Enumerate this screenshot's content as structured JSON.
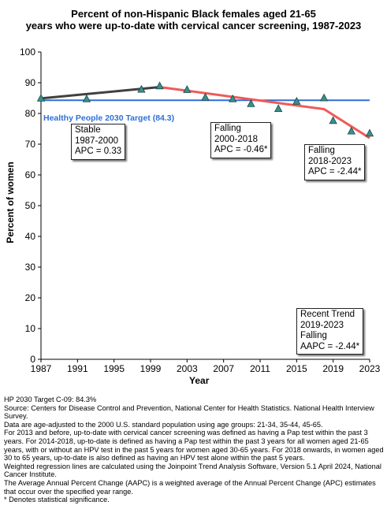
{
  "title_line1": "Percent of non-Hispanic Black females aged 21-65",
  "title_line2": "years who were up-to-date with cervical cancer screening, 1987-2023",
  "chart_data": {
    "type": "line",
    "xlabel": "Year",
    "ylabel": "Percent of women",
    "xlim": [
      1987,
      2023
    ],
    "ylim": [
      0,
      100
    ],
    "x_ticks": [
      1987,
      1991,
      1995,
      1999,
      2003,
      2007,
      2011,
      2015,
      2019,
      2023
    ],
    "y_ticks": [
      0,
      10,
      20,
      30,
      40,
      50,
      60,
      70,
      80,
      90,
      100
    ],
    "grid": false,
    "observed": {
      "x": [
        1987,
        1992,
        1998,
        2000,
        2003,
        2005,
        2008,
        2010,
        2013,
        2015,
        2018,
        2019,
        2021,
        2023
      ],
      "y": [
        84.9,
        84.7,
        87.8,
        88.9,
        87.7,
        85.2,
        84.7,
        83.1,
        81.5,
        83.9,
        85.0,
        77.6,
        74.2,
        73.5
      ]
    },
    "segments": [
      {
        "x": [
          1987,
          2000
        ],
        "y": [
          84.9,
          88.6
        ],
        "color": "#404040"
      },
      {
        "x": [
          2000,
          2018,
          2023
        ],
        "y": [
          88.6,
          81.4,
          72.0
        ],
        "color": "#f05a5a"
      }
    ],
    "target": {
      "value": 84.3,
      "label": "Healthy People 2030 Target (84.3)",
      "color": "#2f6fd6"
    },
    "marker_color": "#3a8f8a"
  },
  "annotations": {
    "stable": [
      "Stable",
      "1987-2000",
      "APC =  0.33"
    ],
    "falling1": [
      "Falling",
      "2000-2018",
      "APC = -0.46*"
    ],
    "falling2": [
      "Falling",
      "2018-2023",
      "APC = -2.44*"
    ],
    "recent": [
      "Recent Trend",
      "2019-2023",
      "Falling",
      "AAPC = -2.44*"
    ]
  },
  "footnotes": [
    "HP 2030 Target C-09: 84.3%",
    "Source: Centers for Disease Control and Prevention, National Center for Health Statistics. National Health Interview Survey.",
    "Data are age-adjusted to the 2000 U.S. standard population using age groups: 21-34, 35-44, 45-65.",
    "For 2013 and before, up-to-date with cervical cancer screening was defined as having a Pap test within the past 3 years. For 2014-2018, up-to-date is defined as having a Pap test within the past 3 years for all women aged 21-65 years, with or without an HPV test in the past 5 years for women aged 30-65 years.  For 2018 onwards, in women aged 30 to 65 years, up-to-date is also defined as having an HPV test alone within the past 5 years.",
    "Weighted regression lines are calculated using the Joinpoint Trend Analysis Software, Version 5.1 April 2024, National Cancer Institute.",
    "The Average Annual Percent Change (AAPC) is a weighted average of the Annual Percent Change (APC) estimates that occur over the specified year range.",
    "* Denotes statistical significance."
  ]
}
